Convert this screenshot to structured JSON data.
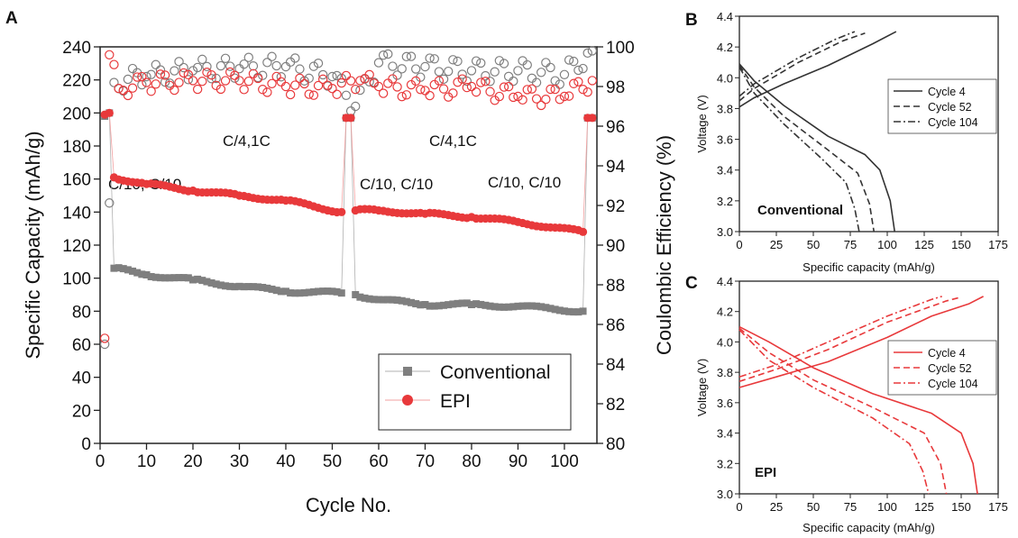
{
  "chart_data": [
    {
      "panel": "A",
      "type": "scatter",
      "xlabel": "Cycle No.",
      "ylabel": "Specific Capacity (mAh/g)",
      "y2label": "Coulombic Efficiency (%)",
      "xlim": [
        0,
        107
      ],
      "ylim": [
        0,
        240
      ],
      "y2lim": [
        80,
        100
      ],
      "xticks": [
        "0",
        "10",
        "20",
        "30",
        "40",
        "50",
        "60",
        "70",
        "80",
        "90",
        "100"
      ],
      "yticks": [
        "0",
        "20",
        "40",
        "60",
        "80",
        "100",
        "120",
        "140",
        "160",
        "180",
        "200",
        "220",
        "240"
      ],
      "y2ticks": [
        "80",
        "82",
        "84",
        "86",
        "88",
        "90",
        "92",
        "94",
        "96",
        "98",
        "100"
      ],
      "annotations": [
        "C/10, C/10",
        "C/4,1C",
        "C/10, C/10",
        "C/4,1C",
        "C/10, C/10"
      ],
      "legend_position": "bottom-right",
      "series": [
        {
          "name": "Conventional",
          "color": "#7f7f7f",
          "marker": "square",
          "capacity_points": [
            [
              1,
              198
            ],
            [
              2,
              200
            ],
            [
              3,
              106
            ],
            [
              10,
              102
            ],
            [
              20,
              99
            ],
            [
              30,
              95
            ],
            [
              40,
              92
            ],
            [
              52,
              91
            ],
            [
              53,
              197
            ],
            [
              54,
              197
            ],
            [
              55,
              90
            ],
            [
              60,
              87
            ],
            [
              70,
              84
            ],
            [
              80,
              84
            ],
            [
              90,
              83
            ],
            [
              104,
              80
            ],
            [
              105,
              197
            ],
            [
              106,
              197
            ]
          ],
          "ce_points": [
            [
              1,
              85
            ],
            [
              3,
              98.2
            ],
            [
              10,
              98.5
            ],
            [
              20,
              98.8
            ],
            [
              30,
              98.9
            ],
            [
              40,
              99
            ],
            [
              50,
              98.5
            ],
            [
              55,
              97
            ],
            [
              60,
              99.2
            ],
            [
              70,
              99
            ],
            [
              80,
              98.8
            ],
            [
              90,
              98.8
            ],
            [
              100,
              98.6
            ],
            [
              106,
              99.8
            ]
          ]
        },
        {
          "name": "EPI",
          "color": "#e8393b",
          "marker": "circle",
          "capacity_points": [
            [
              1,
              199
            ],
            [
              2,
              200
            ],
            [
              3,
              161
            ],
            [
              10,
              157
            ],
            [
              20,
              153
            ],
            [
              30,
              150
            ],
            [
              40,
              147
            ],
            [
              52,
              140
            ],
            [
              53,
              197
            ],
            [
              54,
              197
            ],
            [
              55,
              141
            ],
            [
              60,
              141
            ],
            [
              70,
              139
            ],
            [
              80,
              137
            ],
            [
              90,
              134
            ],
            [
              104,
              128
            ],
            [
              105,
              197
            ],
            [
              106,
              197
            ]
          ],
          "ce_points": [
            [
              1,
              85.3
            ],
            [
              2,
              99.6
            ],
            [
              4,
              97.9
            ],
            [
              10,
              98.2
            ],
            [
              20,
              98.3
            ],
            [
              30,
              98.3
            ],
            [
              40,
              98
            ],
            [
              50,
              97.9
            ],
            [
              56,
              98.3
            ],
            [
              60,
              98
            ],
            [
              70,
              97.8
            ],
            [
              80,
              98
            ],
            [
              90,
              97.5
            ],
            [
              100,
              97.5
            ],
            [
              106,
              98.3
            ]
          ]
        }
      ]
    },
    {
      "panel": "B",
      "type": "line",
      "xlabel": "Specific capacity (mAh/g)",
      "ylabel": "Voltage (V)",
      "xlim": [
        0,
        175
      ],
      "ylim": [
        3.0,
        4.4
      ],
      "xticks": [
        "0",
        "25",
        "50",
        "75",
        "100",
        "125",
        "150",
        "175"
      ],
      "yticks": [
        "3.0",
        "3.2",
        "3.4",
        "3.6",
        "3.8",
        "4.0",
        "4.2",
        "4.4"
      ],
      "annotation": "Conventional",
      "legend_position": "top-right",
      "color": "#333333",
      "series": [
        {
          "name": "Cycle 4",
          "dash": "solid",
          "charge": [
            [
              0,
              3.81
            ],
            [
              10,
              3.87
            ],
            [
              30,
              3.96
            ],
            [
              60,
              4.08
            ],
            [
              90,
              4.22
            ],
            [
              106,
              4.3
            ]
          ],
          "discharge": [
            [
              0,
              4.09
            ],
            [
              10,
              3.98
            ],
            [
              30,
              3.82
            ],
            [
              60,
              3.62
            ],
            [
              85,
              3.5
            ],
            [
              95,
              3.4
            ],
            [
              102,
              3.2
            ],
            [
              105,
              3.0
            ]
          ]
        },
        {
          "name": "Cycle 52",
          "dash": "dashed",
          "charge": [
            [
              0,
              3.85
            ],
            [
              10,
              3.93
            ],
            [
              40,
              4.1
            ],
            [
              70,
              4.24
            ],
            [
              85,
              4.29
            ]
          ],
          "discharge": [
            [
              0,
              4.08
            ],
            [
              10,
              3.94
            ],
            [
              30,
              3.75
            ],
            [
              60,
              3.53
            ],
            [
              80,
              3.38
            ],
            [
              88,
              3.18
            ],
            [
              91,
              3.0
            ]
          ]
        },
        {
          "name": "Cycle 104",
          "dash": "dashdot",
          "charge": [
            [
              0,
              3.88
            ],
            [
              10,
              3.96
            ],
            [
              40,
              4.13
            ],
            [
              65,
              4.25
            ],
            [
              78,
              4.3
            ]
          ],
          "discharge": [
            [
              0,
              4.07
            ],
            [
              10,
              3.9
            ],
            [
              30,
              3.7
            ],
            [
              55,
              3.48
            ],
            [
              72,
              3.32
            ],
            [
              78,
              3.15
            ],
            [
              81,
              3.0
            ]
          ]
        }
      ]
    },
    {
      "panel": "C",
      "type": "line",
      "xlabel": "Specific capacity (mAh/g)",
      "ylabel": "Voltage (V)",
      "xlim": [
        0,
        175
      ],
      "ylim": [
        3.0,
        4.4
      ],
      "xticks": [
        "0",
        "25",
        "50",
        "75",
        "100",
        "125",
        "150",
        "175"
      ],
      "yticks": [
        "3.0",
        "3.2",
        "3.4",
        "3.6",
        "3.8",
        "4.0",
        "4.2",
        "4.4"
      ],
      "annotation": "EPI",
      "legend_position": "top-right",
      "color": "#e8393b",
      "series": [
        {
          "name": "Cycle 4",
          "dash": "solid",
          "charge": [
            [
              0,
              3.7
            ],
            [
              25,
              3.77
            ],
            [
              60,
              3.87
            ],
            [
              100,
              4.03
            ],
            [
              130,
              4.17
            ],
            [
              155,
              4.25
            ],
            [
              165,
              4.3
            ]
          ],
          "discharge": [
            [
              0,
              4.1
            ],
            [
              20,
              4.0
            ],
            [
              50,
              3.83
            ],
            [
              90,
              3.66
            ],
            [
              130,
              3.53
            ],
            [
              150,
              3.4
            ],
            [
              158,
              3.2
            ],
            [
              161,
              3.0
            ]
          ]
        },
        {
          "name": "Cycle 52",
          "dash": "dashed",
          "charge": [
            [
              0,
              3.74
            ],
            [
              25,
              3.82
            ],
            [
              60,
              3.95
            ],
            [
              100,
              4.13
            ],
            [
              140,
              4.27
            ],
            [
              148,
              4.29
            ]
          ],
          "discharge": [
            [
              0,
              4.09
            ],
            [
              20,
              3.93
            ],
            [
              50,
              3.75
            ],
            [
              90,
              3.57
            ],
            [
              125,
              3.4
            ],
            [
              136,
              3.2
            ],
            [
              140,
              3.0
            ]
          ]
        },
        {
          "name": "Cycle 104",
          "dash": "dashdot",
          "charge": [
            [
              0,
              3.77
            ],
            [
              25,
              3.85
            ],
            [
              60,
              4.0
            ],
            [
              100,
              4.17
            ],
            [
              130,
              4.28
            ],
            [
              137,
              4.3
            ]
          ],
          "discharge": [
            [
              0,
              4.08
            ],
            [
              20,
              3.88
            ],
            [
              50,
              3.7
            ],
            [
              90,
              3.5
            ],
            [
              115,
              3.33
            ],
            [
              124,
              3.15
            ],
            [
              128,
              3.0
            ]
          ]
        }
      ]
    }
  ]
}
